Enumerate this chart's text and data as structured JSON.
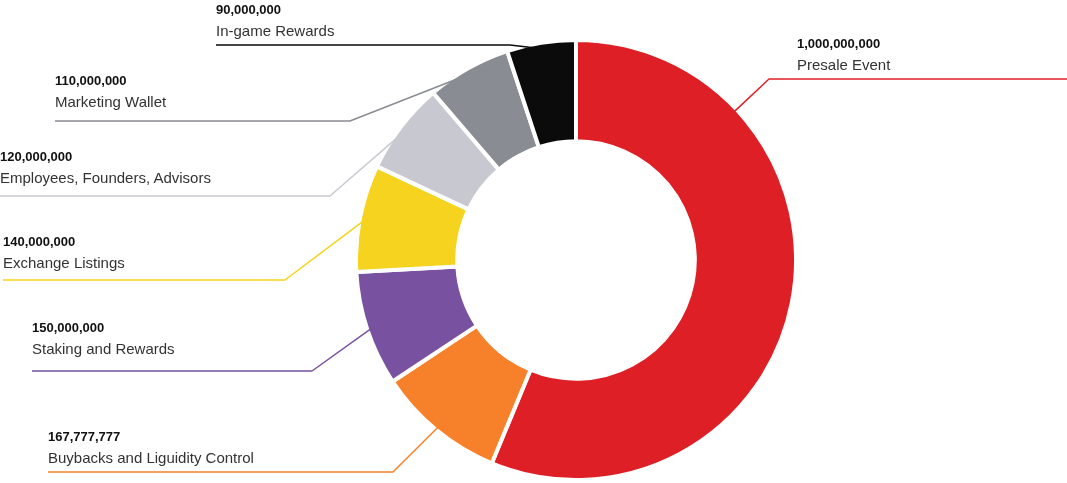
{
  "chart_data": {
    "type": "donut",
    "categories": [
      "Presale Event",
      "Buybacks and Liguidity Control",
      "Staking and Rewards",
      "Exchange Listings",
      "Employees, Founders, Advisors",
      "Marketing Wallet",
      "In-game Rewards"
    ],
    "values": [
      1000000000,
      167777777,
      150000000,
      140000000,
      120000000,
      110000000,
      90000000
    ],
    "colors": [
      "#de1f26",
      "#f7802a",
      "#7851a0",
      "#f5d31e",
      "#c8c9d0",
      "#8a8c93",
      "#0b0b0b"
    ],
    "value_labels": [
      "1,000,000,000",
      "167,777,777",
      "150,000,000",
      "140,000,000",
      "120,000,000",
      "110,000,000",
      "90,000,000"
    ],
    "legend": false
  }
}
